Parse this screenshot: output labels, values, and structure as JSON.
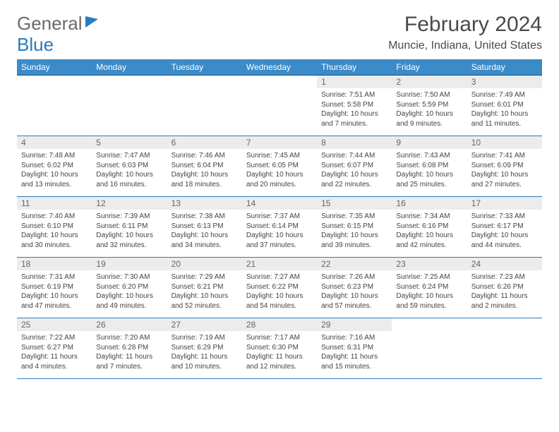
{
  "logo": {
    "part1": "General",
    "part2": "Blue"
  },
  "title": "February 2024",
  "location": "Muncie, Indiana, United States",
  "colors": {
    "header_bg": "#3b8bc9",
    "header_text": "#ffffff",
    "daynum_bg": "#ececec",
    "border": "#2b7bbf",
    "body_text": "#444444",
    "logo_gray": "#6b6b6b",
    "logo_blue": "#2b7bbf"
  },
  "day_headers": [
    "Sunday",
    "Monday",
    "Tuesday",
    "Wednesday",
    "Thursday",
    "Friday",
    "Saturday"
  ],
  "weeks": [
    [
      null,
      null,
      null,
      null,
      {
        "num": "1",
        "sunrise": "7:51 AM",
        "sunset": "5:58 PM",
        "daylight": "10 hours and 7 minutes."
      },
      {
        "num": "2",
        "sunrise": "7:50 AM",
        "sunset": "5:59 PM",
        "daylight": "10 hours and 9 minutes."
      },
      {
        "num": "3",
        "sunrise": "7:49 AM",
        "sunset": "6:01 PM",
        "daylight": "10 hours and 11 minutes."
      }
    ],
    [
      {
        "num": "4",
        "sunrise": "7:48 AM",
        "sunset": "6:02 PM",
        "daylight": "10 hours and 13 minutes."
      },
      {
        "num": "5",
        "sunrise": "7:47 AM",
        "sunset": "6:03 PM",
        "daylight": "10 hours and 16 minutes."
      },
      {
        "num": "6",
        "sunrise": "7:46 AM",
        "sunset": "6:04 PM",
        "daylight": "10 hours and 18 minutes."
      },
      {
        "num": "7",
        "sunrise": "7:45 AM",
        "sunset": "6:05 PM",
        "daylight": "10 hours and 20 minutes."
      },
      {
        "num": "8",
        "sunrise": "7:44 AM",
        "sunset": "6:07 PM",
        "daylight": "10 hours and 22 minutes."
      },
      {
        "num": "9",
        "sunrise": "7:43 AM",
        "sunset": "6:08 PM",
        "daylight": "10 hours and 25 minutes."
      },
      {
        "num": "10",
        "sunrise": "7:41 AM",
        "sunset": "6:09 PM",
        "daylight": "10 hours and 27 minutes."
      }
    ],
    [
      {
        "num": "11",
        "sunrise": "7:40 AM",
        "sunset": "6:10 PM",
        "daylight": "10 hours and 30 minutes."
      },
      {
        "num": "12",
        "sunrise": "7:39 AM",
        "sunset": "6:11 PM",
        "daylight": "10 hours and 32 minutes."
      },
      {
        "num": "13",
        "sunrise": "7:38 AM",
        "sunset": "6:13 PM",
        "daylight": "10 hours and 34 minutes."
      },
      {
        "num": "14",
        "sunrise": "7:37 AM",
        "sunset": "6:14 PM",
        "daylight": "10 hours and 37 minutes."
      },
      {
        "num": "15",
        "sunrise": "7:35 AM",
        "sunset": "6:15 PM",
        "daylight": "10 hours and 39 minutes."
      },
      {
        "num": "16",
        "sunrise": "7:34 AM",
        "sunset": "6:16 PM",
        "daylight": "10 hours and 42 minutes."
      },
      {
        "num": "17",
        "sunrise": "7:33 AM",
        "sunset": "6:17 PM",
        "daylight": "10 hours and 44 minutes."
      }
    ],
    [
      {
        "num": "18",
        "sunrise": "7:31 AM",
        "sunset": "6:19 PM",
        "daylight": "10 hours and 47 minutes."
      },
      {
        "num": "19",
        "sunrise": "7:30 AM",
        "sunset": "6:20 PM",
        "daylight": "10 hours and 49 minutes."
      },
      {
        "num": "20",
        "sunrise": "7:29 AM",
        "sunset": "6:21 PM",
        "daylight": "10 hours and 52 minutes."
      },
      {
        "num": "21",
        "sunrise": "7:27 AM",
        "sunset": "6:22 PM",
        "daylight": "10 hours and 54 minutes."
      },
      {
        "num": "22",
        "sunrise": "7:26 AM",
        "sunset": "6:23 PM",
        "daylight": "10 hours and 57 minutes."
      },
      {
        "num": "23",
        "sunrise": "7:25 AM",
        "sunset": "6:24 PM",
        "daylight": "10 hours and 59 minutes."
      },
      {
        "num": "24",
        "sunrise": "7:23 AM",
        "sunset": "6:26 PM",
        "daylight": "11 hours and 2 minutes."
      }
    ],
    [
      {
        "num": "25",
        "sunrise": "7:22 AM",
        "sunset": "6:27 PM",
        "daylight": "11 hours and 4 minutes."
      },
      {
        "num": "26",
        "sunrise": "7:20 AM",
        "sunset": "6:28 PM",
        "daylight": "11 hours and 7 minutes."
      },
      {
        "num": "27",
        "sunrise": "7:19 AM",
        "sunset": "6:29 PM",
        "daylight": "11 hours and 10 minutes."
      },
      {
        "num": "28",
        "sunrise": "7:17 AM",
        "sunset": "6:30 PM",
        "daylight": "11 hours and 12 minutes."
      },
      {
        "num": "29",
        "sunrise": "7:16 AM",
        "sunset": "6:31 PM",
        "daylight": "11 hours and 15 minutes."
      },
      null,
      null
    ]
  ],
  "labels": {
    "sunrise": "Sunrise:",
    "sunset": "Sunset:",
    "daylight": "Daylight:"
  }
}
